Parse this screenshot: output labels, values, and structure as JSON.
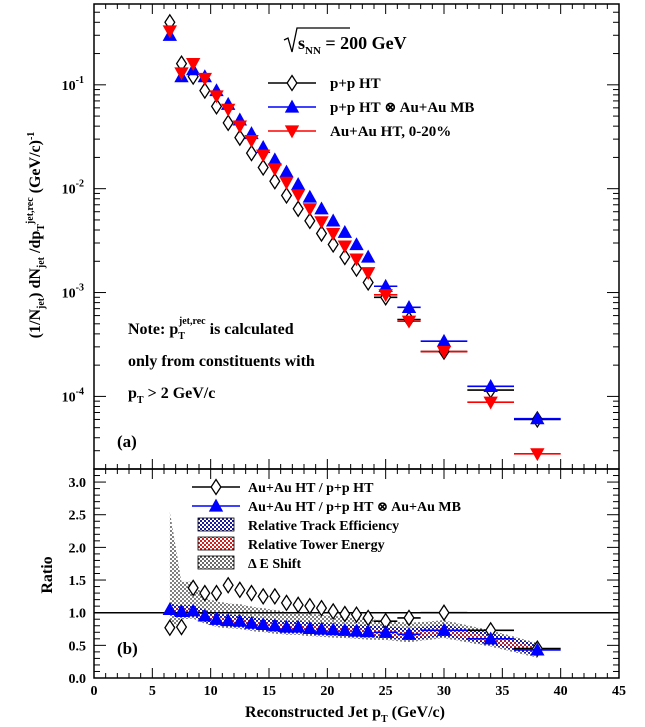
{
  "chart_data": [
    {
      "panel": "(a)",
      "type": "scatter",
      "title": "",
      "energy_label": "√sNN = 200 GeV",
      "ylabel": "(1/Njet) dNjet/dpTjet,rec (GeV/c)-1",
      "xlabel": "",
      "xlim": [
        0,
        45
      ],
      "ylim": [
        2e-05,
        0.6
      ],
      "yscale": "log",
      "yticks": [
        "10^-4",
        "10^-3",
        "10^-2",
        "10^-1"
      ],
      "note_lines": [
        "Note: pTjet,rec is calculated",
        "only from constituents with",
        "pT > 2 GeV/c"
      ],
      "legend_position": "top-right",
      "series": [
        {
          "name": "p+p HT",
          "color": "#000000",
          "marker": "open-diamond",
          "x": [
            6.5,
            7.5,
            8.5,
            9.5,
            10.5,
            11.5,
            12.5,
            13.5,
            14.5,
            15.5,
            16.5,
            17.5,
            18.5,
            19.5,
            20.5,
            21.5,
            22.5,
            23.5,
            25.0,
            27.0,
            30.0,
            34.0,
            38.0
          ],
          "y": [
            0.4,
            0.16,
            0.12,
            0.088,
            0.062,
            0.043,
            0.031,
            0.022,
            0.016,
            0.0118,
            0.0086,
            0.0064,
            0.0049,
            0.0037,
            0.0029,
            0.0022,
            0.0017,
            0.00125,
            0.0009,
            0.00055,
            0.00027,
            0.000115,
            6e-05
          ]
        },
        {
          "name": "p+p HT ⊗ Au+Au MB",
          "color": "#0000ff",
          "marker": "filled-triangle-up",
          "x": [
            6.5,
            7.5,
            8.5,
            9.5,
            10.5,
            11.5,
            12.5,
            13.5,
            14.5,
            15.5,
            16.5,
            17.5,
            18.5,
            19.5,
            20.5,
            21.5,
            22.5,
            23.5,
            25.0,
            27.0,
            30.0,
            34.0,
            38.0
          ],
          "y": [
            0.3,
            0.12,
            0.14,
            0.12,
            0.088,
            0.065,
            0.046,
            0.034,
            0.025,
            0.019,
            0.0145,
            0.011,
            0.0083,
            0.0064,
            0.0049,
            0.0038,
            0.0029,
            0.0022,
            0.00115,
            0.00072,
            0.00034,
            0.000125,
            6.1e-05
          ]
        },
        {
          "name": "Au+Au HT, 0-20%",
          "color": "#ff0000",
          "marker": "filled-triangle-down",
          "x": [
            6.5,
            7.5,
            8.5,
            9.5,
            10.5,
            11.5,
            12.5,
            13.5,
            14.5,
            15.5,
            16.5,
            17.5,
            18.5,
            19.5,
            20.5,
            21.5,
            22.5,
            23.5,
            25.0,
            27.0,
            30.0,
            34.0,
            38.0
          ],
          "y": [
            0.33,
            0.13,
            0.16,
            0.115,
            0.078,
            0.058,
            0.04,
            0.029,
            0.021,
            0.0155,
            0.0115,
            0.0087,
            0.0064,
            0.0048,
            0.0037,
            0.0028,
            0.0021,
            0.00155,
            0.00095,
            0.00053,
            0.00027,
            8.8e-05,
            2.8e-05
          ]
        }
      ]
    },
    {
      "panel": "(b)",
      "type": "scatter",
      "xlabel": "Reconstructed Jet pT (GeV/c)",
      "ylabel": "Ratio",
      "xlim": [
        0,
        45
      ],
      "ylim": [
        0,
        3.2
      ],
      "xticks": [
        "0",
        "5",
        "10",
        "15",
        "20",
        "25",
        "30",
        "35",
        "40",
        "45"
      ],
      "yticks": [
        "0.0",
        "0.5",
        "1.0",
        "1.5",
        "2.0",
        "2.5",
        "3.0"
      ],
      "reference_line": 1.0,
      "legend_position": "top",
      "series": [
        {
          "name": "Au+Au HT / p+p HT",
          "color": "#000000",
          "marker": "open-diamond",
          "x": [
            6.5,
            7.5,
            8.5,
            9.5,
            10.5,
            11.5,
            12.5,
            13.5,
            14.5,
            15.5,
            16.5,
            17.5,
            18.5,
            19.5,
            20.5,
            21.5,
            22.5,
            23.5,
            25.0,
            27.0,
            30.0,
            34.0,
            38.0
          ],
          "y": [
            0.77,
            0.78,
            1.38,
            1.3,
            1.3,
            1.42,
            1.35,
            1.3,
            1.25,
            1.25,
            1.15,
            1.12,
            1.1,
            1.07,
            1.02,
            0.98,
            0.97,
            0.92,
            0.87,
            0.92,
            1.0,
            0.73,
            0.45
          ]
        },
        {
          "name": "Au+Au HT / p+p HT ⊗ Au+Au MB",
          "color": "#0000ff",
          "marker": "filled-triangle-up",
          "x": [
            6.5,
            7.5,
            8.5,
            9.5,
            10.5,
            11.5,
            12.5,
            13.5,
            14.5,
            15.5,
            16.5,
            17.5,
            18.5,
            19.5,
            20.5,
            21.5,
            22.5,
            23.5,
            25.0,
            27.0,
            30.0,
            34.0,
            38.0
          ],
          "y": [
            1.05,
            1.02,
            1.03,
            0.95,
            0.9,
            0.88,
            0.87,
            0.84,
            0.82,
            0.8,
            0.78,
            0.78,
            0.76,
            0.75,
            0.74,
            0.73,
            0.72,
            0.71,
            0.7,
            0.67,
            0.73,
            0.6,
            0.43
          ]
        }
      ],
      "bands": [
        {
          "name": "Relative Track Efficiency",
          "color": "#1a1aa0",
          "pattern": "checker"
        },
        {
          "name": "Relative Tower Energy",
          "color": "#cc2222",
          "pattern": "checker"
        },
        {
          "name": "Δ E Shift",
          "color": "#000000",
          "pattern": "dots"
        }
      ]
    }
  ]
}
